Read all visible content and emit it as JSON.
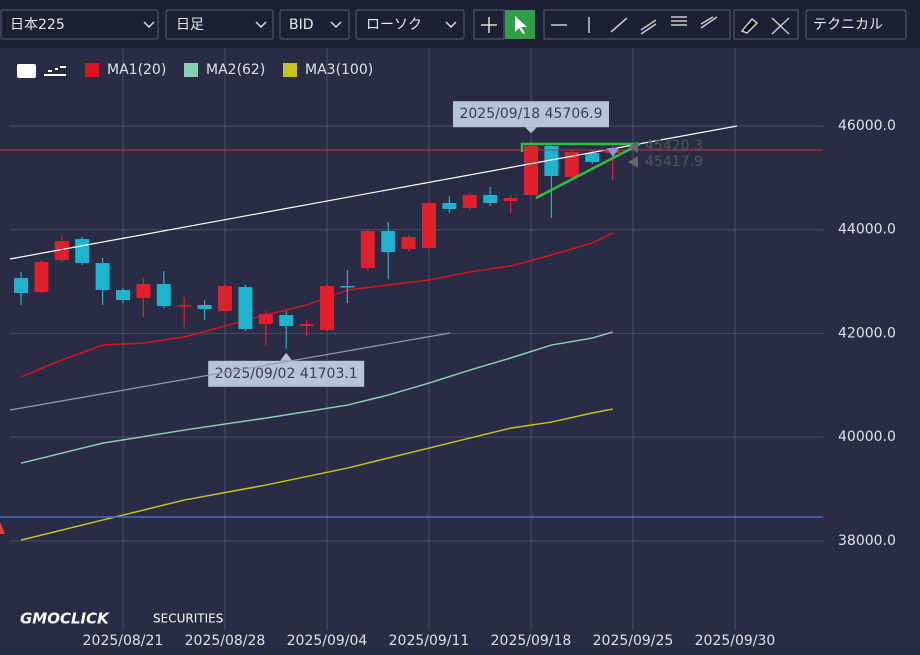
{
  "toolbar": {
    "symbol": "日本225",
    "period": "日足",
    "side": "BID",
    "style": "ローソク",
    "technical": "テクニカル"
  },
  "logo": {
    "brand": "GMOCLICK",
    "sub": "SECURITIES"
  },
  "chart_data": {
    "type": "candlestick",
    "open": [
      43068,
      42798,
      43415,
      43820,
      43357,
      42837,
      42682,
      42952,
      42528,
      42547,
      42431,
      42894,
      42180,
      42354,
      42142,
      42065,
      42914,
      43261,
      43975,
      43627,
      43647,
      44515,
      44418,
      44669,
      44553,
      44669,
      45614,
      45016,
      45479,
      45479
    ],
    "high": [
      43184,
      43415,
      43897,
      43859,
      43454,
      42875,
      43068,
      43203,
      42701,
      42644,
      42952,
      42933,
      42431,
      42431,
      42258,
      42952,
      43222,
      44013,
      44148,
      43897,
      44553,
      44650,
      44708,
      44823,
      44669,
      45706.9,
      45672,
      45537,
      45518,
      45672
    ],
    "low": [
      42547,
      42779,
      43377,
      43319,
      42547,
      42586,
      42316,
      42489,
      42123,
      42258,
      42393,
      42046,
      41775,
      41703.1,
      41949,
      42046,
      42586,
      43222,
      43049,
      43589,
      43627,
      44322,
      44380,
      44457,
      44322,
      44650,
      44225,
      44997,
      45267,
      44958
    ],
    "close": [
      42779,
      43377,
      43782,
      43357,
      42837,
      42644,
      42952,
      42528,
      42547,
      42470,
      42914,
      42084,
      42373,
      42142,
      42180,
      42914,
      42894,
      43975,
      43570,
      43859,
      44515,
      44399,
      44669,
      44515,
      44611,
      45614,
      45035,
      45498,
      45306,
      45537
    ],
    "up_color": "#e0202a",
    "down_color": "#1fb3cf",
    "series": [
      {
        "name": "MA1(20)",
        "color": "#d8141c",
        "x": [
          0,
          2,
          4,
          6,
          8,
          10,
          12,
          14,
          16,
          18,
          20,
          22,
          24,
          26,
          28,
          29
        ],
        "values": [
          41158,
          41486,
          41775,
          41814,
          41930,
          42142,
          42354,
          42547,
          42836,
          42933,
          43029,
          43184,
          43300,
          43512,
          43743,
          43936
        ]
      },
      {
        "name": "MA2(62)",
        "color": "#86d0b6",
        "x": [
          0,
          4,
          8,
          12,
          16,
          18,
          20,
          22,
          24,
          26,
          28,
          29
        ],
        "values": [
          39497,
          39883,
          40136,
          40367,
          40618,
          40811,
          41042,
          41293,
          41525,
          41775,
          41910,
          42026
        ]
      },
      {
        "name": "MA3(100)",
        "color": "#c8c21e",
        "x": [
          0,
          4,
          8,
          12,
          16,
          20,
          24,
          26,
          28,
          29
        ],
        "values": [
          38014,
          38400,
          38786,
          39075,
          39403,
          39789,
          40174,
          40290,
          40464,
          40541
        ]
      }
    ],
    "annotations": [
      {
        "x": 25,
        "value": 45706.9,
        "label": "2025/09/18 45706.9",
        "side": "top"
      },
      {
        "x": 13,
        "value": 41703.1,
        "label": "2025/09/02 41703.1",
        "side": "bottom"
      }
    ],
    "price_labels": [
      "45420.3",
      "45417.9"
    ],
    "xlim": [
      -1,
      39
    ],
    "ylim": [
      36280,
      47504
    ],
    "xticks": [
      {
        "value": 5,
        "label": "2025/08/21"
      },
      {
        "value": 10,
        "label": "2025/08/28"
      },
      {
        "value": 15,
        "label": "2025/09/04"
      },
      {
        "value": 20,
        "label": "2025/09/11"
      },
      {
        "value": 25,
        "label": "2025/09/18"
      },
      {
        "value": 30,
        "label": "2025/09/25"
      },
      {
        "value": 35,
        "label": "2025/09/30"
      }
    ],
    "yticks": [
      {
        "value": 38000,
        "label": "38000.0"
      },
      {
        "value": 40000,
        "label": "40000.0"
      },
      {
        "value": 42000,
        "label": "42000.0"
      },
      {
        "value": 44000,
        "label": "44000.0"
      },
      {
        "value": 46000,
        "label": "46000.0"
      }
    ],
    "grid": true
  }
}
